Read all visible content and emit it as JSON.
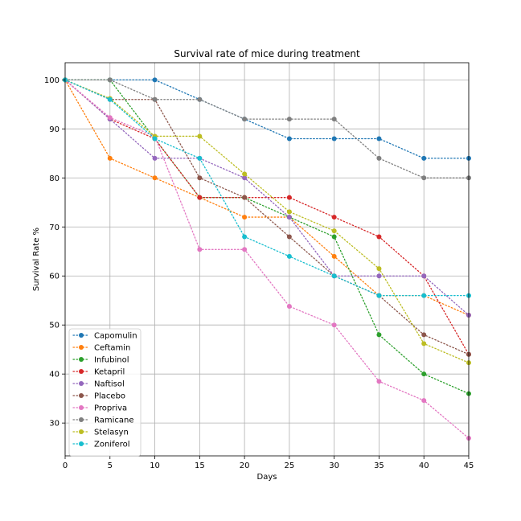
{
  "chart_data": {
    "type": "line",
    "title": "Survival rate of mice during treatment",
    "xlabel": "Days",
    "ylabel": "Survival Rate %",
    "xlim": [
      0,
      45
    ],
    "ylim": [
      23.3,
      103.5
    ],
    "xticks": [
      0,
      5,
      10,
      15,
      20,
      25,
      30,
      35,
      40,
      45
    ],
    "yticks": [
      30,
      40,
      50,
      60,
      70,
      80,
      90,
      100
    ],
    "grid": true,
    "legend_position": "lower-left",
    "line_style": "dotted",
    "x": [
      0,
      5,
      10,
      15,
      20,
      25,
      30,
      35,
      40,
      45
    ],
    "series": [
      {
        "name": "Capomulin",
        "color": "#1f77b4",
        "values": [
          100,
          100,
          100,
          96,
          92,
          88,
          88,
          88,
          84,
          84
        ]
      },
      {
        "name": "Ceftamin",
        "color": "#ff7f0e",
        "values": [
          100,
          84,
          80,
          76,
          72,
          72,
          64,
          56,
          56,
          52
        ]
      },
      {
        "name": "Infubinol",
        "color": "#2ca02c",
        "values": [
          100,
          100,
          88,
          76,
          76,
          72,
          68,
          48,
          40,
          36
        ]
      },
      {
        "name": "Ketapril",
        "color": "#d62728",
        "values": [
          100,
          92,
          88,
          76,
          76,
          76,
          72,
          68,
          60,
          44
        ]
      },
      {
        "name": "Naftisol",
        "color": "#9467bd",
        "values": [
          100,
          92,
          84,
          84,
          80,
          72,
          60,
          60,
          60,
          52
        ]
      },
      {
        "name": "Placebo",
        "color": "#8c564b",
        "values": [
          100,
          96,
          96,
          80,
          76,
          68,
          60,
          56,
          48,
          44
        ]
      },
      {
        "name": "Propriva",
        "color": "#e377c2",
        "values": [
          100,
          92.3,
          88.5,
          65.4,
          65.4,
          53.8,
          50,
          38.5,
          34.6,
          26.9
        ]
      },
      {
        "name": "Ramicane",
        "color": "#7f7f7f",
        "values": [
          100,
          100,
          96,
          96,
          92,
          92,
          92,
          84,
          80,
          80
        ]
      },
      {
        "name": "Stelasyn",
        "color": "#bcbd22",
        "values": [
          100,
          96.2,
          88.5,
          88.5,
          80.8,
          73.1,
          69.2,
          61.5,
          46.2,
          42.3
        ]
      },
      {
        "name": "Zoniferol",
        "color": "#17becf",
        "values": [
          100,
          96,
          88,
          84,
          68,
          64,
          60,
          56,
          56,
          56
        ]
      }
    ]
  }
}
